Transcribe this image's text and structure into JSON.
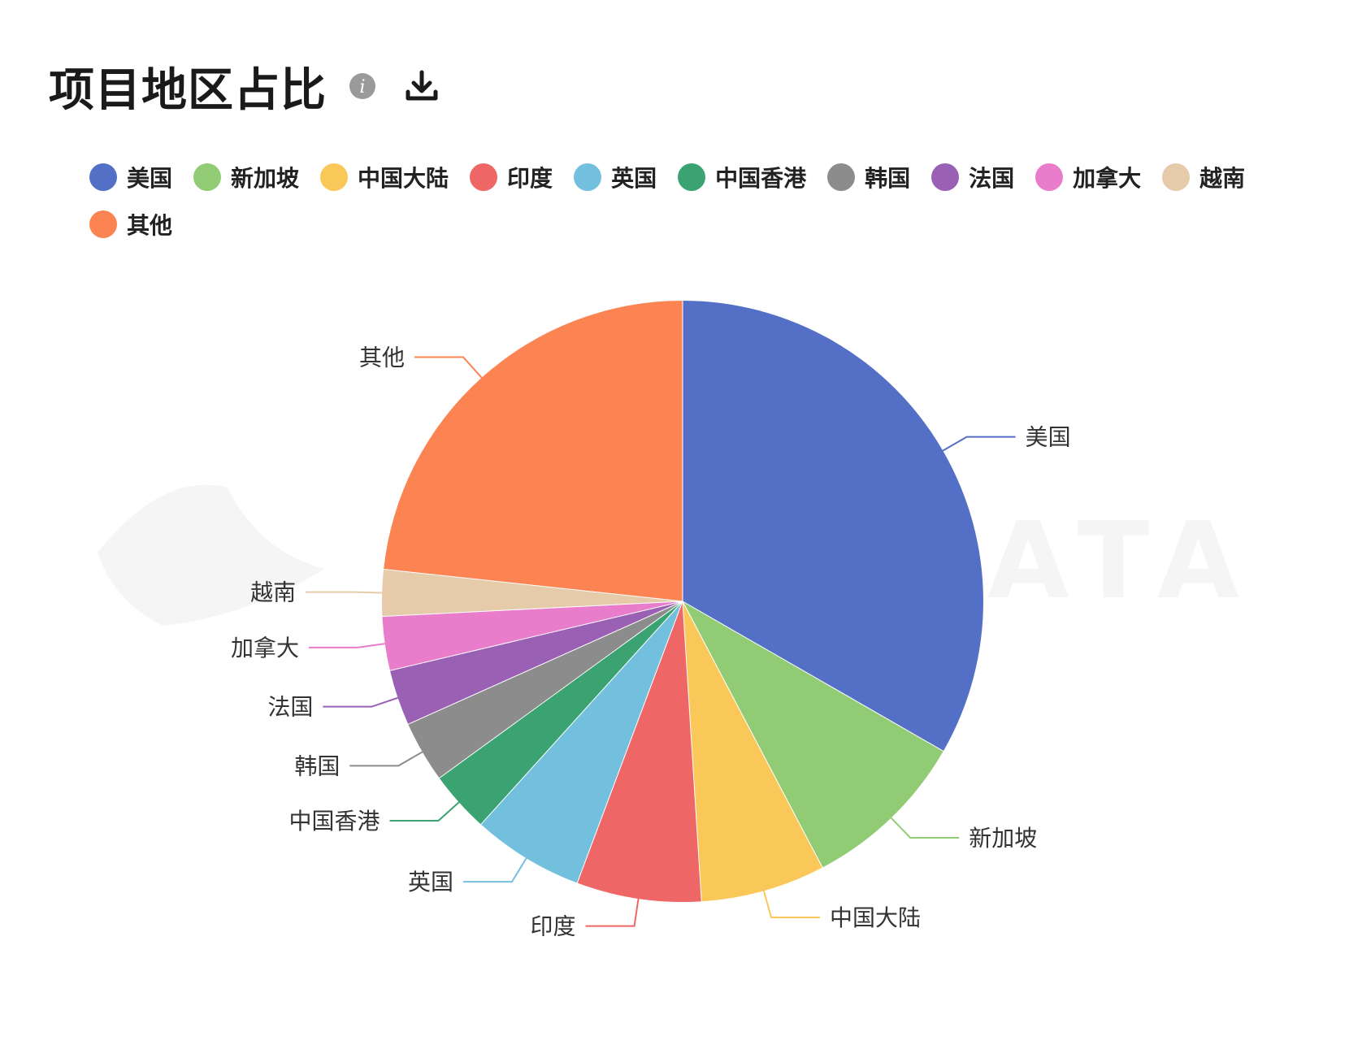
{
  "header": {
    "title": "项目地区占比",
    "info_icon": "info-icon",
    "download_icon": "download-icon"
  },
  "colors": {
    "美国": "#5470c6",
    "新加坡": "#91cc75",
    "中国大陆": "#fac858",
    "印度": "#ee6666",
    "英国": "#73c0de",
    "中国香港": "#3ba272",
    "韩国": "#8c8c8c",
    "法国": "#9a60b4",
    "加拿大": "#ea7ccc",
    "越南": "#e5cba9",
    "其他": "#fc8452"
  },
  "watermark": {
    "text": "ATA"
  },
  "chart_data": {
    "type": "pie",
    "title": "项目地区占比",
    "legend_position": "top",
    "start_angle_clockwise_from_top": 0,
    "categories": [
      "美国",
      "新加坡",
      "中国大陆",
      "印度",
      "英国",
      "中国香港",
      "韩国",
      "法国",
      "加拿大",
      "越南",
      "其他"
    ],
    "values": [
      33.3,
      9.0,
      6.7,
      6.7,
      6.0,
      3.3,
      3.3,
      3.0,
      2.9,
      2.5,
      23.3
    ],
    "unit": "%"
  }
}
